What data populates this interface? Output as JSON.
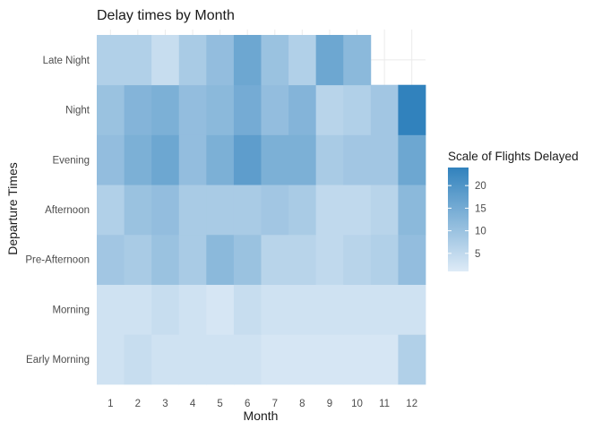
{
  "chart_data": {
    "type": "heatmap",
    "title": "Delay times by Month",
    "xlabel": "Month",
    "ylabel": "Departure Times",
    "x": [
      "1",
      "2",
      "3",
      "4",
      "5",
      "6",
      "7",
      "8",
      "9",
      "10",
      "11",
      "12"
    ],
    "y": [
      "Early Morning",
      "Morning",
      "Pre-Afternoon",
      "Afternoon",
      "Evening",
      "Night",
      "Late Night"
    ],
    "values": [
      [
        3,
        4,
        3,
        3,
        3,
        3,
        2,
        2,
        2,
        2,
        2,
        7
      ],
      [
        3,
        3,
        4,
        3,
        2,
        4,
        3,
        3,
        3,
        3,
        3,
        3
      ],
      [
        9,
        8,
        10,
        8,
        12,
        10,
        6,
        6,
        5,
        6,
        7,
        11
      ],
      [
        7,
        10,
        11,
        8,
        8,
        8,
        9,
        8,
        5,
        5,
        6,
        12
      ],
      [
        11,
        14,
        16,
        11,
        14,
        18,
        14,
        14,
        8,
        9,
        9,
        16
      ],
      [
        10,
        13,
        14,
        11,
        12,
        15,
        11,
        13,
        6,
        7,
        9,
        24
      ],
      [
        7,
        7,
        4,
        8,
        11,
        16,
        10,
        7,
        16,
        12,
        null,
        null
      ]
    ],
    "colorbar": {
      "title": "Scale of Flights Delayed",
      "ticks": [
        5,
        10,
        15,
        20
      ],
      "range": [
        1,
        24
      ],
      "low_color": "#deebf7",
      "high_color": "#3182bd"
    },
    "background": "#ffffff",
    "grid": true,
    "legend_position": "right"
  }
}
